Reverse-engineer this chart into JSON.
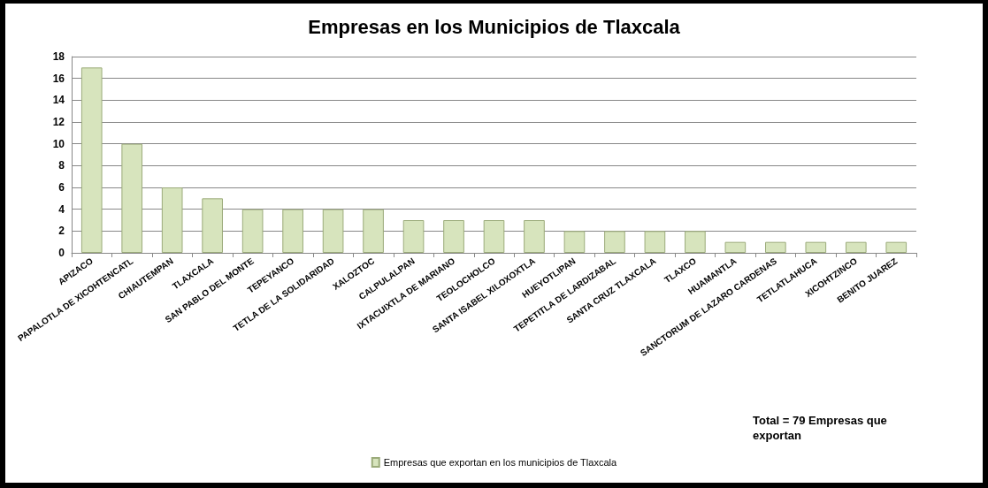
{
  "chart_data": {
    "type": "bar",
    "title": "Empresas en los Municipios de Tlaxcala",
    "categories": [
      "APIZACO",
      "PAPALOTLA DE XICOHTENCATL",
      "CHIAUTEMPAN",
      "TLAXCALA",
      "SAN PABLO DEL MONTE",
      "TEPEYANCO",
      "TETLA DE LA SOLIDARIDAD",
      "XALOZTOC",
      "CALPULALPAN",
      "IXTACUIXTLA DE MARIANO",
      "TEOLOCHOLCO",
      "SANTA ISABEL XILOXOXTLA",
      "HUEYOTLIPAN",
      "TEPETITLA DE LARDIZABAL",
      "SANTA CRUZ TLAXCALA",
      "TLAXCO",
      "HUAMANTLA",
      "SANCTORUM DE LAZARO CARDENAS",
      "TETLATLAHUCA",
      "XICOHTZINCO",
      "BENITO JUAREZ"
    ],
    "series": [
      {
        "name": "Empresas que exportan en los municipios de Tlaxcala",
        "color": "#d7e4bd",
        "values": [
          17,
          10,
          6,
          5,
          4,
          4,
          4,
          4,
          3,
          3,
          3,
          3,
          2,
          2,
          2,
          2,
          1,
          1,
          1,
          1,
          1
        ]
      }
    ],
    "ylim": [
      0,
      18
    ],
    "yticks": [
      0,
      2,
      4,
      6,
      8,
      10,
      12,
      14,
      16,
      18
    ],
    "grid": "y",
    "legend": "bottom",
    "annotations": [
      "Total = 79 Empresas que exportan"
    ]
  }
}
